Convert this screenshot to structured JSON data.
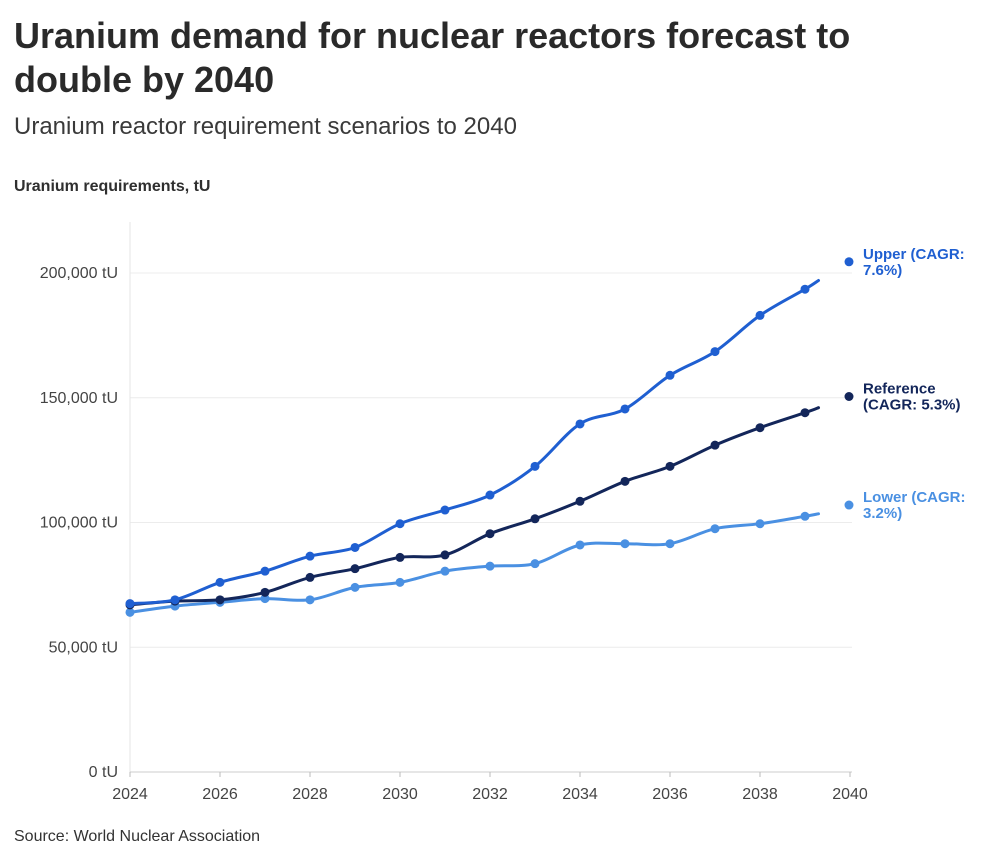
{
  "header": {
    "title": "Uranium demand for nuclear reactors forecast to double by 2040",
    "subtitle": "Uranium reactor requirement scenarios to 2040",
    "axis_title": "Uranium requirements, tU"
  },
  "footer": {
    "source": "Source: World Nuclear Association"
  },
  "chart_data": {
    "type": "line",
    "title": "Uranium demand for nuclear reactors forecast to double by 2040",
    "subtitle": "Uranium reactor requirement scenarios to 2040",
    "xlabel": "",
    "ylabel": "Uranium requirements, tU",
    "xlim": [
      2024,
      2040
    ],
    "ylim": [
      0,
      220000
    ],
    "x_ticks": [
      2024,
      2026,
      2028,
      2030,
      2032,
      2034,
      2036,
      2038,
      2040
    ],
    "x_tick_labels": [
      "2024",
      "2026",
      "2028",
      "2030",
      "2032",
      "2034",
      "2036",
      "2038",
      "2040"
    ],
    "y_ticks": [
      0,
      50000,
      100000,
      150000,
      200000
    ],
    "y_tick_labels": [
      "0 tU",
      "50,000 tU",
      "100,000 tU",
      "150,000 tU",
      "200,000 tU"
    ],
    "grid": true,
    "legend": "direct labels at right end of lines",
    "series": [
      {
        "name": "Upper",
        "label_lines": [
          "Upper (CAGR:",
          "7.6%)"
        ],
        "color": "#1f5fd1",
        "x": [
          2024,
          2025,
          2026,
          2027,
          2028,
          2029,
          2030,
          2031,
          2032,
          2033,
          2034,
          2035,
          2036,
          2037,
          2038,
          2039
        ],
        "values": [
          67500,
          69000,
          76000,
          80500,
          86500,
          90000,
          99500,
          105000,
          111000,
          122500,
          139500,
          145500,
          159000,
          168500,
          183000,
          193500
        ],
        "end": [
          2039.3,
          197000
        ],
        "label_value": 204500
      },
      {
        "name": "Reference",
        "label_lines": [
          "Reference",
          "(CAGR: 5.3%)"
        ],
        "color": "#13265a",
        "x": [
          2024,
          2025,
          2026,
          2027,
          2028,
          2029,
          2030,
          2031,
          2032,
          2033,
          2034,
          2035,
          2036,
          2037,
          2038,
          2039
        ],
        "values": [
          67000,
          68500,
          69000,
          72000,
          78000,
          81500,
          86000,
          87000,
          95500,
          101500,
          108500,
          116500,
          122500,
          131000,
          138000,
          144000
        ],
        "end": [
          2039.3,
          146000
        ],
        "label_value": 150500
      },
      {
        "name": "Lower",
        "label_lines": [
          "Lower (CAGR:",
          "3.2%)"
        ],
        "color": "#4a90e2",
        "x": [
          2024,
          2025,
          2026,
          2027,
          2028,
          2029,
          2030,
          2031,
          2032,
          2033,
          2034,
          2035,
          2036,
          2037,
          2038,
          2039
        ],
        "values": [
          64000,
          66500,
          68000,
          69500,
          69000,
          74000,
          76000,
          80500,
          82500,
          83500,
          91000,
          91500,
          91500,
          97500,
          99500,
          102500
        ],
        "end": [
          2039.3,
          103500
        ],
        "label_value": 107000
      }
    ]
  }
}
